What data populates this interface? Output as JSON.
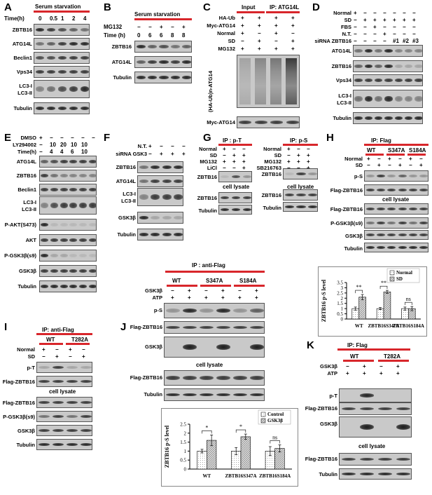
{
  "panels": {
    "A": {
      "label": "A",
      "header": "Serum starvation",
      "time_label": "Time(h)",
      "times": [
        "0",
        "0.5",
        "1",
        "2",
        "4"
      ],
      "rows": [
        "ZBTB16",
        "ATG14L",
        "Beclin1",
        "Vps34",
        "LC3-I",
        "LC3-II",
        "Tubulin"
      ]
    },
    "B": {
      "label": "B",
      "header": "Serum starvation",
      "mg132_label": "MG132",
      "mg132": [
        "−",
        "−",
        "+",
        "−",
        "+"
      ],
      "time_label": "Time (h)",
      "times": [
        "0",
        "6",
        "6",
        "8",
        "8"
      ],
      "rows": [
        "ZBTB16",
        "ATG14L",
        "Tubulin"
      ]
    },
    "C": {
      "label": "C",
      "header_input": "Input",
      "header_ip": "IP: ATG14L",
      "conds": [
        {
          "name": "HA-Ub",
          "vals": [
            "+",
            "+",
            "+",
            "+"
          ]
        },
        {
          "name": "Myc-ATG14",
          "vals": [
            "+",
            "+",
            "+",
            "+"
          ]
        },
        {
          "name": "Normal",
          "vals": [
            "+",
            "−",
            "+",
            "−"
          ]
        },
        {
          "name": "SD",
          "vals": [
            "−",
            "+",
            "−",
            "+"
          ]
        },
        {
          "name": "MG132",
          "vals": [
            "+",
            "+",
            "+",
            "+"
          ]
        }
      ],
      "smear_label": "(HA-Ub)n-ATG14",
      "bottom_row": "Myc-ATG14"
    },
    "D": {
      "label": "D",
      "conds": [
        {
          "name": "Normal",
          "vals": [
            "+",
            "−",
            "−",
            "−",
            "−",
            "−",
            "−"
          ]
        },
        {
          "name": "SD",
          "vals": [
            "−",
            "+",
            "+",
            "+",
            "+",
            "+",
            "+"
          ]
        },
        {
          "name": "FBS",
          "vals": [
            "−",
            "−",
            "+",
            "−",
            "−",
            "−",
            "−"
          ]
        },
        {
          "name": "N.T.",
          "vals": [
            "−",
            "−",
            "−",
            "+",
            "−",
            "−",
            "−"
          ]
        },
        {
          "name": "siRNA ZBTB16",
          "vals": [
            "−",
            "−",
            "−",
            "−",
            "#1",
            "#2",
            "#3"
          ]
        }
      ],
      "rows": [
        "ATG14L",
        "ZBTB16",
        "Vps34",
        "LC3-I",
        "LC3-II",
        "Tubulin"
      ]
    },
    "E": {
      "label": "E",
      "conds": [
        {
          "name": "DMSO",
          "vals": [
            "+",
            "−",
            "−",
            "−",
            "−",
            "−"
          ]
        },
        {
          "name": "LY294002",
          "vals": [
            "−",
            "10",
            "20",
            "10",
            "10",
            ""
          ]
        },
        {
          "name": "Time(h)",
          "vals": [
            "−",
            "4",
            "4",
            "6",
            "10",
            ""
          ]
        }
      ],
      "rows": [
        "ATG14L",
        "ZBTB16",
        "Beclin1",
        "LC3-I",
        "LC3-II",
        "P-AKT(S473)",
        "AKT",
        "P-GSK3β(s9)",
        "GSK3β",
        "Tubulin"
      ]
    },
    "F": {
      "label": "F",
      "conds": [
        {
          "name": "N.T.",
          "vals": [
            "+",
            "−",
            "−",
            "−"
          ]
        },
        {
          "name": "siRNA GSK3",
          "vals": [
            "−",
            "+",
            "+",
            "+"
          ]
        }
      ],
      "rows": [
        "ZBTB16",
        "ATG14L",
        "LC3-I",
        "LC3-II",
        "GSK3β",
        "Tubulin"
      ]
    },
    "G": {
      "label": "G",
      "ip_t": "IP : p-T",
      "ip_s": "IP: p-S",
      "conds_t": [
        {
          "name": "Normal",
          "vals": [
            "+",
            "−",
            "−"
          ]
        },
        {
          "name": "SD",
          "vals": [
            "−",
            "+",
            "+"
          ]
        },
        {
          "name": "MG132",
          "vals": [
            "+",
            "+",
            "+"
          ]
        },
        {
          "name": "LiCl",
          "vals": [
            "−",
            "−",
            "+"
          ]
        }
      ],
      "conds_s": [
        {
          "name": "Normal",
          "vals": [
            "+",
            "−",
            "−"
          ]
        },
        {
          "name": "SD",
          "vals": [
            "−",
            "+",
            "+"
          ]
        },
        {
          "name": "MG132",
          "vals": [
            "+",
            "+",
            "+"
          ]
        },
        {
          "name": "SB216763",
          "vals": [
            "−",
            "−",
            "+"
          ]
        }
      ],
      "row_ip": "ZBTB16",
      "cell_lysate": "cell  lysate",
      "rows": [
        "ZBTB16",
        "Tubulin"
      ]
    },
    "H": {
      "label": "H",
      "ip": "IP: Flag",
      "groups": [
        "WT",
        "S347A",
        "S184A"
      ],
      "conds": [
        {
          "name": "Normal",
          "vals": [
            "+",
            "−",
            "+",
            "−",
            "+",
            "−"
          ]
        },
        {
          "name": "SD",
          "vals": [
            "−",
            "+",
            "−",
            "+",
            "−",
            "+"
          ]
        }
      ],
      "rows_ip": [
        "p-S",
        "Flag-ZBTB16"
      ],
      "cell_lysate": "cell lysate",
      "rows": [
        "Flag-ZBTB16",
        "P-GSK3β(s9)",
        "GSK3β",
        "Tubulin"
      ]
    },
    "I": {
      "label": "I",
      "ip": "IP: anti-Flag",
      "groups": [
        "WT",
        "T282A"
      ],
      "conds": [
        {
          "name": "Normal",
          "vals": [
            "+",
            "−",
            "+",
            "−"
          ]
        },
        {
          "name": "SD",
          "vals": [
            "−",
            "+",
            "−",
            "+"
          ]
        }
      ],
      "rows_ip": [
        "p-T",
        "Flag-ZBTB16"
      ],
      "cell_lysate": "cell lysate",
      "rows": [
        "Flag-ZBTB16",
        "P-GSK3β(s9)",
        "GSK3β",
        "Tubulin"
      ]
    },
    "J": {
      "label": "J",
      "ip": "IP : anti-Flag",
      "groups": [
        "WT",
        "S347A",
        "S184A"
      ],
      "conds": [
        {
          "name": "GSK3β",
          "vals": [
            "−",
            "+",
            "−",
            "+",
            "−",
            "+"
          ]
        },
        {
          "name": "ATP",
          "vals": [
            "+",
            "+",
            "+",
            "+",
            "+",
            "+"
          ]
        }
      ],
      "rows_ip": [
        "p-S",
        "Flag-ZBTB16",
        "GSK3β"
      ],
      "cell_lysate": "cell lysate",
      "rows": [
        "Flag-ZBTB16",
        "Tubulin"
      ]
    },
    "K": {
      "label": "K",
      "ip": "IP: Flag",
      "groups": [
        "WT",
        "T282A"
      ],
      "conds": [
        {
          "name": "GSK3β",
          "vals": [
            "−",
            "+",
            "−",
            "+"
          ]
        },
        {
          "name": "ATP",
          "vals": [
            "+",
            "+",
            "+",
            "+"
          ]
        }
      ],
      "rows_ip": [
        "p-T",
        "Flag-ZBTB16",
        "GSK3β"
      ],
      "cell_lysate": "cell lysate",
      "rows": [
        "Flag-ZBTB16",
        "Tubulin"
      ]
    }
  },
  "chart_data": [
    {
      "type": "bar",
      "ylabel": "ZBTB16 p-S level",
      "categories": [
        "WT",
        "ZBTB16S347A",
        "ZBTB16S184A"
      ],
      "ylim": [
        0,
        3.5
      ],
      "yticks": [
        0,
        0.5,
        1,
        1.5,
        2,
        2.5,
        3,
        3.5
      ],
      "series": [
        {
          "name": "Normal",
          "values": [
            1.0,
            1.0,
            1.0
          ],
          "errors": [
            0.15,
            0.1,
            0.15
          ]
        },
        {
          "name": "SD",
          "values": [
            2.1,
            2.6,
            1.0
          ],
          "errors": [
            0.25,
            0.15,
            0.2
          ]
        }
      ],
      "significance": [
        "**",
        "**",
        "ns"
      ],
      "legend": "top-right"
    },
    {
      "type": "bar",
      "ylabel": "ZBTB16 p-S level",
      "categories": [
        "WT",
        "ZBTB16S347A",
        "ZBTB16S184A"
      ],
      "ylim": [
        0,
        2.5
      ],
      "yticks": [
        0,
        0.5,
        1,
        1.5,
        2,
        2.5
      ],
      "series": [
        {
          "name": "Control",
          "values": [
            1.0,
            1.0,
            1.0
          ],
          "errors": [
            0.1,
            0.2,
            0.25
          ]
        },
        {
          "name": "GSK3β",
          "values": [
            1.6,
            1.8,
            1.15
          ],
          "errors": [
            0.3,
            0.15,
            0.2
          ]
        }
      ],
      "significance": [
        "*",
        "*",
        "ns"
      ],
      "legend": "top-right"
    }
  ]
}
